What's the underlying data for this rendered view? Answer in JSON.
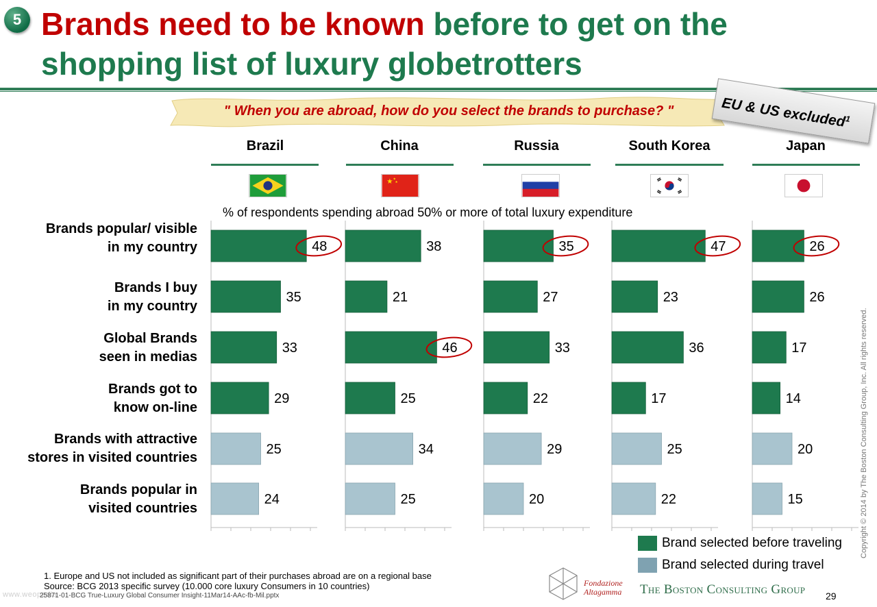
{
  "slide": {
    "number": "5",
    "title_part1": "Brands need to be known",
    "title_part2": " before to get on the shopping list of luxury globetrotters",
    "question": "\" When you are abroad, how do you select the brands to purchase? \"",
    "stamp": "EU & US excluded",
    "stamp_sup": "1",
    "subtitle": "% of respondents spending abroad  50% or more of total luxury expenditure",
    "footnote1": "1. Europe and US not included as significant part of their purchases abroad are on a regional base",
    "footnote2": "Source: BCG 2013 specific survey (10.000 core luxury Consumers in 10 countries)",
    "file_ref": "25871-01-BCG True-Luxury Global Consumer Insight-11Mar14-AAc-fb-Mil.pptx",
    "watermark": "www.weopedia",
    "copyright": "Copyright © 2014 by The Boston Consulting Group, Inc. All rights reserved.",
    "page_number": "29",
    "logo_altagamma_1": "Fondazione",
    "logo_altagamma_2": "Altagamma",
    "logo_bcg": "The Boston Consulting Group"
  },
  "colors": {
    "before": "#1e7a4e",
    "during": "#a9c4cf",
    "highlight": "#c00000"
  },
  "icons": {
    "flags": [
      "brazil-flag-icon",
      "china-flag-icon",
      "russia-flag-icon",
      "south-korea-flag-icon",
      "japan-flag-icon"
    ],
    "logo": "altagamma-logo-icon"
  },
  "chart_data": {
    "type": "bar",
    "orientation": "horizontal",
    "panels": [
      "Brazil",
      "China",
      "Russia",
      "South Korea",
      "Japan"
    ],
    "categories": [
      "Brands popular/ visible in my country",
      "Brands I buy in my country",
      "Global Brands seen in medias",
      "Brands got to know on-line",
      "Brands with attractive stores in visited countries",
      "Brands popular in visited countries"
    ],
    "category_groups": [
      "Brand selected before traveling",
      "Brand selected before traveling",
      "Brand selected before traveling",
      "Brand selected before traveling",
      "Brand selected during travel",
      "Brand selected during travel"
    ],
    "series": [
      {
        "name": "Brazil",
        "values": [
          48,
          35,
          33,
          29,
          25,
          24
        ],
        "highlighted": [
          0
        ]
      },
      {
        "name": "China",
        "values": [
          38,
          21,
          46,
          25,
          34,
          25
        ],
        "highlighted": [
          2
        ]
      },
      {
        "name": "Russia",
        "values": [
          35,
          27,
          33,
          22,
          29,
          20
        ],
        "highlighted": [
          0
        ]
      },
      {
        "name": "South Korea",
        "values": [
          47,
          23,
          36,
          17,
          25,
          22
        ],
        "highlighted": [
          0
        ]
      },
      {
        "name": "Japan",
        "values": [
          26,
          26,
          17,
          14,
          20,
          15
        ],
        "highlighted": [
          0
        ]
      }
    ],
    "legend": [
      {
        "label": "Brand selected before traveling",
        "color": "#1e7a4e"
      },
      {
        "label": "Brand selected during travel",
        "color": "#a9c4cf"
      }
    ],
    "legend_position": "bottom-right",
    "grid": false
  }
}
